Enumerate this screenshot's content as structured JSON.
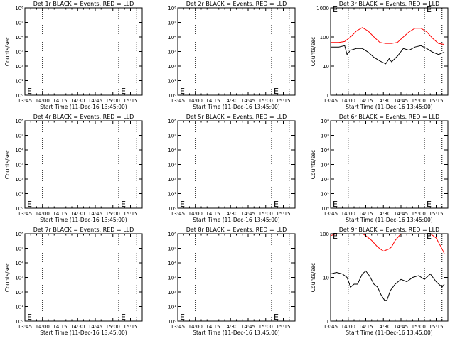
{
  "figure": {
    "x_tick_labels": [
      "13:45",
      "14:00",
      "14:15",
      "14:30",
      "14:45",
      "15:00",
      "15:15"
    ],
    "xlabel": "Start Time (11-Dec-16 13:45:00)",
    "ylabel": "Counts/sec",
    "colors": {
      "events": "#000000",
      "lld": "#ff0000",
      "axes": "#000000"
    }
  },
  "chart_data": [
    {
      "type": "line",
      "title": "Det 1r BLACK = Events, RED = LLD",
      "xlabel": "Start Time (11-Dec-16 13:45:00)",
      "ylabel": "Counts/sec",
      "xlim": [
        "13:45",
        "15:25"
      ],
      "ylim": [
        1,
        1000000
      ],
      "yscale": "log",
      "y_tick_labels": [
        "10⁰",
        "10¹",
        "10²",
        "10³",
        "10⁴",
        "10⁵",
        "10⁶"
      ],
      "grid": false,
      "vlines": [
        "14:00",
        "15:05",
        "15:20"
      ],
      "annotations": [
        {
          "text": "E",
          "x": "13:45",
          "y": 2
        },
        {
          "text": "E",
          "x": "15:05",
          "y": 2
        }
      ],
      "series": []
    },
    {
      "type": "line",
      "title": "Det 2r BLACK = Events, RED = LLD",
      "xlabel": "Start Time (11-Dec-16 13:45:00)",
      "ylabel": "",
      "xlim": [
        "13:45",
        "15:25"
      ],
      "ylim": [
        1,
        1000000
      ],
      "yscale": "log",
      "y_tick_labels": [
        "10⁰",
        "10¹",
        "10²",
        "10³",
        "10⁴",
        "10⁵",
        "10⁶"
      ],
      "grid": false,
      "vlines": [
        "14:00",
        "15:05",
        "15:20"
      ],
      "annotations": [
        {
          "text": "E",
          "x": "13:45",
          "y": 2
        },
        {
          "text": "E",
          "x": "15:05",
          "y": 2
        }
      ],
      "series": []
    },
    {
      "type": "line",
      "title": "Det 3r BLACK = Events, RED = LLD",
      "xlabel": "Start Time (11-Dec-16 13:45:00)",
      "ylabel": "Counts/sec",
      "xlim": [
        "13:45",
        "15:25"
      ],
      "ylim": [
        1,
        1000
      ],
      "yscale": "log",
      "y_tick_labels": [
        "1",
        "10",
        "100",
        "1000"
      ],
      "grid": false,
      "vlines": [
        "14:00",
        "15:05",
        "15:20"
      ],
      "annotations": [
        {
          "text": "E",
          "x": "13:45",
          "y": 900
        },
        {
          "text": "E",
          "x": "15:05",
          "y": 900
        }
      ],
      "series": [
        {
          "color": "#ff0000",
          "x": [
            "13:45",
            "13:52",
            "13:57",
            "14:02",
            "14:07",
            "14:12",
            "14:17",
            "14:22",
            "14:27",
            "14:32",
            "14:37",
            "14:42",
            "14:47",
            "14:52",
            "14:57",
            "15:02",
            "15:07",
            "15:12",
            "15:17",
            "15:22"
          ],
          "values": [
            65,
            65,
            70,
            100,
            160,
            210,
            160,
            100,
            65,
            60,
            60,
            65,
            100,
            150,
            200,
            200,
            150,
            90,
            60,
            55
          ]
        },
        {
          "color": "#000000",
          "x": [
            "13:45",
            "13:52",
            "13:57",
            "13:59",
            "14:02",
            "14:07",
            "14:12",
            "14:17",
            "14:22",
            "14:27",
            "14:32",
            "14:35",
            "14:37",
            "14:42",
            "14:47",
            "14:52",
            "14:57",
            "15:02",
            "15:07",
            "15:12",
            "15:17",
            "15:22"
          ],
          "values": [
            45,
            45,
            50,
            25,
            35,
            40,
            40,
            30,
            20,
            15,
            12,
            18,
            14,
            22,
            40,
            35,
            45,
            50,
            40,
            30,
            25,
            30
          ]
        }
      ]
    },
    {
      "type": "line",
      "title": "Det 4r BLACK = Events, RED = LLD",
      "xlabel": "Start Time (11-Dec-16 13:45:00)",
      "ylabel": "Counts/sec",
      "xlim": [
        "13:45",
        "15:25"
      ],
      "ylim": [
        1,
        1000000
      ],
      "yscale": "log",
      "y_tick_labels": [
        "10⁰",
        "10¹",
        "10²",
        "10³",
        "10⁴",
        "10⁵",
        "10⁶"
      ],
      "grid": false,
      "vlines": [
        "14:00",
        "15:05",
        "15:20"
      ],
      "annotations": [
        {
          "text": "E",
          "x": "13:45",
          "y": 2
        },
        {
          "text": "E",
          "x": "15:05",
          "y": 2
        }
      ],
      "series": []
    },
    {
      "type": "line",
      "title": "Det 5r BLACK = Events, RED = LLD",
      "xlabel": "Start Time (11-Dec-16 13:45:00)",
      "ylabel": "",
      "xlim": [
        "13:45",
        "15:25"
      ],
      "ylim": [
        1,
        1000000
      ],
      "yscale": "log",
      "y_tick_labels": [
        "10⁰",
        "10¹",
        "10²",
        "10³",
        "10⁴",
        "10⁵",
        "10⁶"
      ],
      "grid": false,
      "vlines": [
        "14:00",
        "15:05",
        "15:20"
      ],
      "annotations": [
        {
          "text": "E",
          "x": "13:45",
          "y": 2
        },
        {
          "text": "E",
          "x": "15:05",
          "y": 2
        }
      ],
      "series": []
    },
    {
      "type": "line",
      "title": "Det 6r BLACK = Events, RED = LLD",
      "xlabel": "Start Time (11-Dec-16 13:45:00)",
      "ylabel": "Counts/sec",
      "xlim": [
        "13:45",
        "15:25"
      ],
      "ylim": [
        1,
        1000000
      ],
      "yscale": "log",
      "y_tick_labels": [
        "10⁰",
        "10¹",
        "10²",
        "10³",
        "10⁴",
        "10⁵",
        "10⁶"
      ],
      "grid": false,
      "vlines": [
        "14:00",
        "15:05",
        "15:20"
      ],
      "annotations": [
        {
          "text": "E",
          "x": "13:45",
          "y": 2
        },
        {
          "text": "E",
          "x": "15:05",
          "y": 2
        }
      ],
      "series": []
    },
    {
      "type": "line",
      "title": "Det 7r BLACK = Events, RED = LLD",
      "xlabel": "Start Time (11-Dec-16 13:45:00)",
      "ylabel": "Counts/sec",
      "xlim": [
        "13:45",
        "15:25"
      ],
      "ylim": [
        1,
        1000000
      ],
      "yscale": "log",
      "y_tick_labels": [
        "10⁰",
        "10¹",
        "10²",
        "10³",
        "10⁴",
        "10⁵",
        "10⁶"
      ],
      "grid": false,
      "vlines": [
        "14:00",
        "15:05",
        "15:20"
      ],
      "annotations": [
        {
          "text": "E",
          "x": "13:45",
          "y": 2
        },
        {
          "text": "E",
          "x": "15:05",
          "y": 2
        }
      ],
      "series": []
    },
    {
      "type": "line",
      "title": "Det 8r BLACK = Events, RED = LLD",
      "xlabel": "Start Time (11-Dec-16 13:45:00)",
      "ylabel": "",
      "xlim": [
        "13:45",
        "15:25"
      ],
      "ylim": [
        1,
        1000000
      ],
      "yscale": "log",
      "y_tick_labels": [
        "10⁰",
        "10¹",
        "10²",
        "10³",
        "10⁴",
        "10⁵",
        "10⁶"
      ],
      "grid": false,
      "vlines": [
        "14:00",
        "15:05",
        "15:20"
      ],
      "annotations": [
        {
          "text": "E",
          "x": "13:45",
          "y": 2
        },
        {
          "text": "E",
          "x": "15:05",
          "y": 2
        }
      ],
      "series": []
    },
    {
      "type": "line",
      "title": "Det 9r BLACK = Events, RED = LLD",
      "xlabel": "Start Time (11-Dec-16 13:45:00)",
      "ylabel": "Counts/sec",
      "xlim": [
        "13:45",
        "15:25"
      ],
      "ylim": [
        1,
        100
      ],
      "yscale": "log",
      "y_tick_labels": [
        "1",
        "10",
        "100"
      ],
      "grid": false,
      "vlines": [
        "14:00",
        "15:05",
        "15:20"
      ],
      "annotations": [
        {
          "text": "E",
          "x": "13:45",
          "y": 90
        },
        {
          "text": "E",
          "x": "15:05",
          "y": 90
        }
      ],
      "series": [
        {
          "color": "#ff0000",
          "x": [
            "13:45",
            "13:50",
            "13:55",
            "14:00",
            "14:05",
            "14:10",
            "14:12",
            "14:15",
            "14:20",
            "14:25",
            "14:30",
            "14:35",
            "14:37",
            "14:40",
            "14:45",
            "14:50",
            "14:55",
            "15:00",
            "15:03",
            "15:07",
            "15:10",
            "15:15",
            "15:20",
            "15:22"
          ],
          "values": [
            90,
            100,
            100,
            100,
            100,
            100,
            100,
            90,
            70,
            50,
            40,
            45,
            50,
            70,
            100,
            100,
            100,
            100,
            100,
            100,
            100,
            80,
            45,
            35
          ]
        },
        {
          "color": "#000000",
          "x": [
            "13:45",
            "13:50",
            "13:55",
            "13:59",
            "14:02",
            "14:05",
            "14:08",
            "14:12",
            "14:15",
            "14:18",
            "14:22",
            "14:25",
            "14:28",
            "14:31",
            "14:33",
            "14:36",
            "14:40",
            "14:45",
            "14:50",
            "14:55",
            "15:00",
            "15:05",
            "15:10",
            "15:15",
            "15:20",
            "15:22"
          ],
          "values": [
            12,
            13,
            12,
            10,
            6,
            7,
            7,
            12,
            14,
            11,
            7,
            6,
            4,
            3,
            3,
            5,
            7,
            9,
            8,
            10,
            11,
            9,
            12,
            8,
            6,
            7
          ]
        }
      ]
    }
  ]
}
